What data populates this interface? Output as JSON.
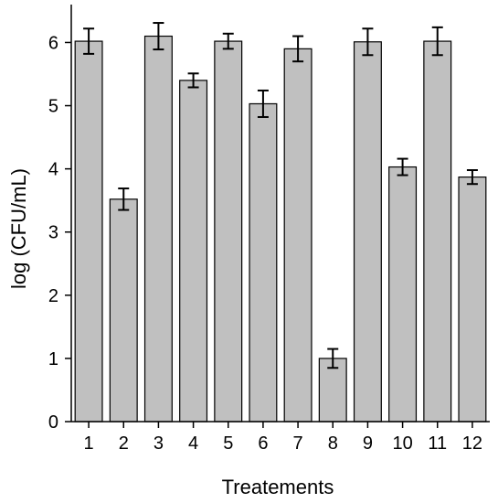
{
  "chart_data": {
    "type": "bar",
    "categories": [
      "1",
      "2",
      "3",
      "4",
      "5",
      "6",
      "7",
      "8",
      "9",
      "10",
      "11",
      "12"
    ],
    "values": [
      6.02,
      3.52,
      6.1,
      5.4,
      6.02,
      5.03,
      5.9,
      1.0,
      6.01,
      4.03,
      6.02,
      3.87
    ],
    "errors": [
      0.2,
      0.17,
      0.21,
      0.11,
      0.12,
      0.21,
      0.2,
      0.15,
      0.21,
      0.13,
      0.22,
      0.11
    ],
    "title": "",
    "xlabel": "Treatements",
    "ylabel": "log (CFU/mL)",
    "ylim": [
      0,
      6.6
    ],
    "yticks": [
      "0",
      "1",
      "2",
      "3",
      "4",
      "5",
      "6"
    ],
    "grid": false,
    "bar_color": "#c0c0c0"
  }
}
